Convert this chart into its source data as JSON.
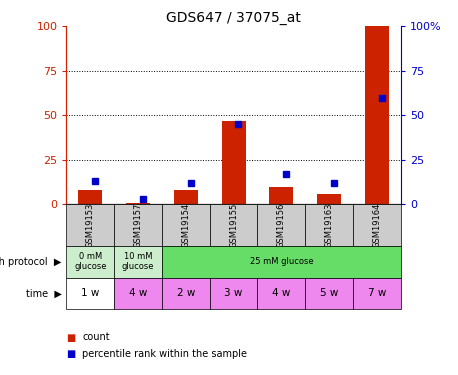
{
  "title": "GDS647 / 37075_at",
  "samples": [
    "GSM19153",
    "GSM19157",
    "GSM19154",
    "GSM19155",
    "GSM19156",
    "GSM19163",
    "GSM19164"
  ],
  "count_values": [
    8,
    1,
    8,
    47,
    10,
    6,
    100
  ],
  "percentile_values": [
    13,
    3,
    12,
    45,
    17,
    12,
    60
  ],
  "growth_protocol": [
    {
      "label": "0 mM\nglucose",
      "span": 1,
      "color": "#CCEECC"
    },
    {
      "label": "10 mM\nglucose",
      "span": 1,
      "color": "#CCEECC"
    },
    {
      "label": "25 mM glucose",
      "span": 5,
      "color": "#66DD66"
    }
  ],
  "time_labels": [
    "1 w",
    "4 w",
    "2 w",
    "3 w",
    "4 w",
    "5 w",
    "7 w"
  ],
  "time_colors": [
    "white",
    "#EE88EE",
    "#EE88EE",
    "#EE88EE",
    "#EE88EE",
    "#EE88EE",
    "#EE88EE"
  ],
  "bar_color": "#CC2200",
  "dot_color": "#0000CC",
  "yticks": [
    0,
    25,
    50,
    75,
    100
  ],
  "ylim": [
    0,
    100
  ],
  "left_tick_color": "#CC2200",
  "right_tick_color": "#0000CC",
  "sample_bg_color": "#CCCCCC",
  "bar_width": 0.5
}
